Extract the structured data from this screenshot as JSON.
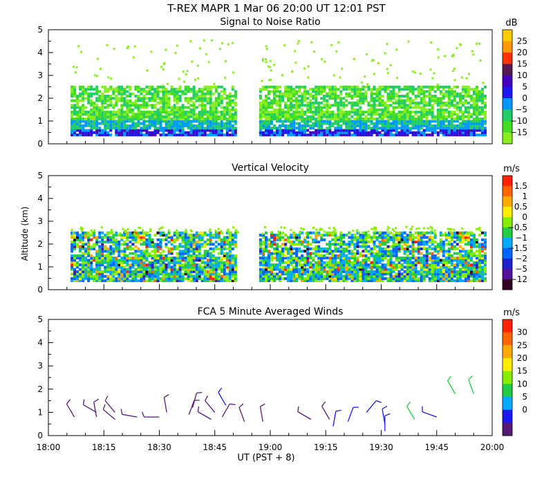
{
  "title": "T-REX   MAPR   1 Mar 06   20:00 UT   12:01   PST",
  "x_axis": {
    "label": "UT  (PST + 8)",
    "tick_labels": [
      "18:00",
      "18:15",
      "18:30",
      "18:45",
      "19:00",
      "19:15",
      "19:30",
      "19:45",
      "20:00"
    ]
  },
  "y_axis_label": "Altitude (km)",
  "chart_data": [
    {
      "type": "heatmap",
      "title": "Signal to Noise Ratio",
      "units": "dB",
      "xlim_min": [
        0,
        120
      ],
      "ylim_km": [
        0,
        5
      ],
      "y_tick_labels": [
        "0",
        "1",
        "2",
        "3",
        "4",
        "5"
      ],
      "colorbar": {
        "labels": [
          "25",
          "20",
          "15",
          "10",
          "5",
          "0",
          "−5",
          "−10",
          "−15"
        ],
        "colors": [
          "#ffcc00",
          "#ff9900",
          "#ff3300",
          "#551a55",
          "#4400bb",
          "#1a1aee",
          "#0099ff",
          "#22cc66",
          "#44dd22",
          "#88ee22"
        ]
      },
      "data_gap_min": [
        51,
        57
      ],
      "coverage_top_km": 2.5
    },
    {
      "type": "heatmap",
      "title": "Vertical Velocity",
      "units": "m/s",
      "xlim_min": [
        0,
        120
      ],
      "ylim_km": [
        0,
        5
      ],
      "y_tick_labels": [
        "0",
        "1",
        "2",
        "3",
        "4",
        "5"
      ],
      "colorbar": {
        "labels": [
          "1.5",
          "1",
          "0.5",
          "0",
          "−0.5",
          "−1",
          "−1.5",
          "−2",
          "−5",
          "−12"
        ],
        "colors": [
          "#ff2200",
          "#ff6600",
          "#ffaa00",
          "#ffee00",
          "#88ee00",
          "#22cc44",
          "#00aaff",
          "#0066ff",
          "#2222cc",
          "#551199",
          "#330022"
        ]
      },
      "data_gap_min": [
        51,
        57
      ],
      "coverage_top_km": 2.5
    },
    {
      "type": "scatter",
      "title": "FCA 5 Minute Averaged Winds",
      "units": "m/s",
      "xlim_min": [
        0,
        120
      ],
      "ylim_km": [
        0,
        5
      ],
      "y_tick_labels": [
        "0",
        "1",
        "2",
        "3",
        "4",
        "5"
      ],
      "colorbar": {
        "labels": [
          "30",
          "25",
          "20",
          "15",
          "10",
          "5",
          "0"
        ],
        "colors": [
          "#ff2200",
          "#ff6600",
          "#ffaa00",
          "#ffee00",
          "#88ee00",
          "#22cc44",
          "#00aaff",
          "#1a1aee",
          "#551a77"
        ]
      },
      "wind_barbs": [
        {
          "t": 7,
          "alt": 0.8,
          "dir": 330,
          "speed": 3
        },
        {
          "t": 13,
          "alt": 0.8,
          "dir": 350,
          "speed": 4
        },
        {
          "t": 13,
          "alt": 1.0,
          "dir": 300,
          "speed": 4
        },
        {
          "t": 18,
          "alt": 0.7,
          "dir": 310,
          "speed": 3
        },
        {
          "t": 18,
          "alt": 1.0,
          "dir": 320,
          "speed": 3
        },
        {
          "t": 24,
          "alt": 0.8,
          "dir": 280,
          "speed": 3
        },
        {
          "t": 30,
          "alt": 0.8,
          "dir": 270,
          "speed": 3
        },
        {
          "t": 32,
          "alt": 1.0,
          "dir": 350,
          "speed": 4
        },
        {
          "t": 38,
          "alt": 0.9,
          "dir": 20,
          "speed": 4
        },
        {
          "t": 39,
          "alt": 1.2,
          "dir": 15,
          "speed": 4
        },
        {
          "t": 44,
          "alt": 0.7,
          "dir": 300,
          "speed": 4
        },
        {
          "t": 45,
          "alt": 1.0,
          "dir": 320,
          "speed": 4
        },
        {
          "t": 47,
          "alt": 0.8,
          "dir": 30,
          "speed": 4
        },
        {
          "t": 48,
          "alt": 1.3,
          "dir": 330,
          "speed": 7
        },
        {
          "t": 53,
          "alt": 0.6,
          "dir": 340,
          "speed": 4
        },
        {
          "t": 58,
          "alt": 0.6,
          "dir": 350,
          "speed": 4
        },
        {
          "t": 71,
          "alt": 0.7,
          "dir": 300,
          "speed": 5
        },
        {
          "t": 76,
          "alt": 0.7,
          "dir": 330,
          "speed": 5
        },
        {
          "t": 77,
          "alt": 0.4,
          "dir": 10,
          "speed": 6
        },
        {
          "t": 81,
          "alt": 0.6,
          "dir": 20,
          "speed": 6
        },
        {
          "t": 86,
          "alt": 1.0,
          "dir": 40,
          "speed": 6
        },
        {
          "t": 91,
          "alt": 0.5,
          "dir": 350,
          "speed": 8
        },
        {
          "t": 91,
          "alt": 0.2,
          "dir": 0,
          "speed": 8
        },
        {
          "t": 99,
          "alt": 0.7,
          "dir": 330,
          "speed": 12
        },
        {
          "t": 105,
          "alt": 0.8,
          "dir": 290,
          "speed": 6
        },
        {
          "t": 110,
          "alt": 1.8,
          "dir": 330,
          "speed": 10
        },
        {
          "t": 115,
          "alt": 1.8,
          "dir": 340,
          "speed": 10
        }
      ]
    }
  ]
}
